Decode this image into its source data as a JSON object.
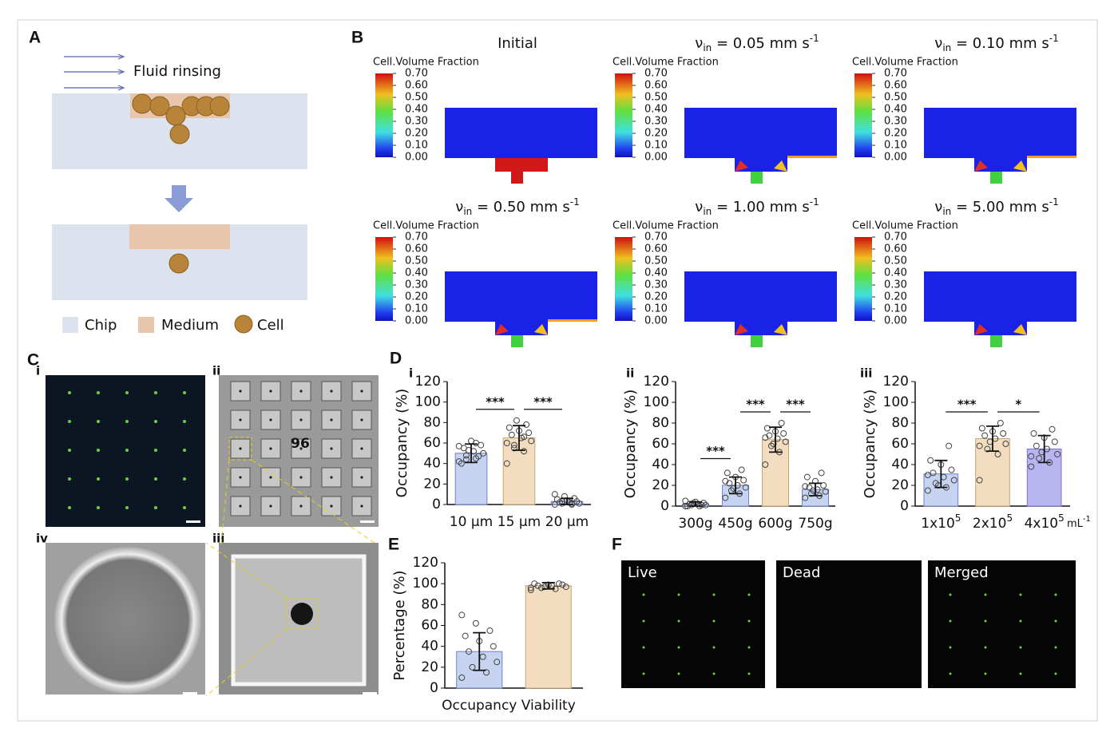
{
  "panel_a": {
    "label": "A",
    "flow_text": "Fluid rinsing",
    "legend": [
      "Chip",
      "Medium",
      "Cell"
    ]
  },
  "panel_b": {
    "label": "B",
    "colorbar": {
      "title": "Cell.Volume Fraction",
      "ticks": [
        {
          "value": 0.7,
          "label": "0.70"
        },
        {
          "value": 0.6,
          "label": "0.60"
        },
        {
          "value": 0.5,
          "label": "0.50"
        },
        {
          "value": 0.4,
          "label": "0.40"
        },
        {
          "value": 0.3,
          "label": "0.30"
        },
        {
          "value": 0.2,
          "label": "0.20"
        },
        {
          "value": 0.1,
          "label": "0.10"
        },
        {
          "value": 0,
          "label": "0.00"
        }
      ]
    },
    "subplots": [
      {
        "title": "Initial"
      },
      {
        "symbol": "ν",
        "sub": "in",
        "title": " = 0.05 mm s",
        "sup": "-1"
      },
      {
        "symbol": "ν",
        "sub": "in",
        "title": " = 0.10 mm s",
        "sup": "-1"
      },
      {
        "symbol": "ν",
        "sub": "in",
        "title": " = 0.50 mm s",
        "sup": "-1"
      },
      {
        "symbol": "ν",
        "sub": "in",
        "title": " = 1.00 mm s",
        "sup": "-1"
      },
      {
        "symbol": "ν",
        "sub": "in",
        "title": " = 5.00 mm s",
        "sup": "-1"
      }
    ]
  },
  "panel_c": {
    "label": "C",
    "images": [
      "i",
      "ii",
      "iii",
      "iv"
    ],
    "chip_number": "96"
  },
  "panel_d": {
    "label": "D",
    "subpanels": [
      "i",
      "ii",
      "iii"
    ]
  },
  "panel_e": {
    "label": "E"
  },
  "panel_f": {
    "label": "F",
    "images": [
      "Live",
      "Dead",
      "Merged"
    ]
  },
  "chart_data": [
    {
      "type": "bar",
      "ylabel": "Occupancy (%)",
      "categories": [
        "10 μm",
        "15 μm",
        "20 μm"
      ],
      "values": [
        50,
        65,
        3
      ],
      "errors": [
        9,
        12,
        3
      ],
      "colors": [
        "#c6d4f1",
        "#f2ddc1",
        "#c6d4f1"
      ],
      "edge_colors": [
        "#6f83c9",
        "#c9a46e",
        "#6f83c9"
      ],
      "points": [
        [
          42,
          45,
          48,
          50,
          52,
          55,
          58,
          62,
          40,
          47,
          53,
          57,
          60,
          44
        ],
        [
          40,
          52,
          58,
          62,
          65,
          68,
          70,
          72,
          75,
          78,
          82,
          60,
          66,
          55
        ],
        [
          0,
          0,
          1,
          1,
          2,
          2,
          3,
          4,
          5,
          6,
          8,
          10,
          1,
          3
        ]
      ],
      "significance": [
        {
          "pair": [
            0,
            1
          ],
          "label": "***"
        },
        {
          "pair": [
            1,
            2
          ],
          "label": "***"
        }
      ],
      "ylim": [
        0,
        120
      ],
      "yticks": [
        0,
        20,
        40,
        60,
        80,
        100,
        120
      ]
    },
    {
      "type": "bar",
      "ylabel": "Occupancy (%)",
      "categories": [
        "300g",
        "450g",
        "600g",
        "750g"
      ],
      "values": [
        2,
        20,
        64,
        16
      ],
      "errors": [
        2,
        8,
        12,
        6
      ],
      "colors": [
        "#c6d4f1",
        "#c6d4f1",
        "#f2ddc1",
        "#c6d4f1"
      ],
      "edge_colors": [
        "#6f83c9",
        "#6f83c9",
        "#c9a46e",
        "#6f83c9"
      ],
      "points": [
        [
          0,
          0,
          1,
          1,
          2,
          2,
          3,
          4,
          0,
          1,
          3,
          5
        ],
        [
          8,
          12,
          15,
          18,
          20,
          22,
          25,
          28,
          32,
          35,
          17,
          24
        ],
        [
          40,
          52,
          58,
          62,
          65,
          68,
          70,
          72,
          75,
          80,
          60,
          66
        ],
        [
          8,
          10,
          12,
          14,
          16,
          18,
          20,
          24,
          28,
          32,
          15,
          19
        ]
      ],
      "significance": [
        {
          "pair": [
            0,
            1
          ],
          "label": "***"
        },
        {
          "pair": [
            1,
            2
          ],
          "label": "***"
        },
        {
          "pair": [
            2,
            3
          ],
          "label": "***"
        }
      ],
      "ylim": [
        0,
        120
      ],
      "yticks": [
        0,
        20,
        40,
        60,
        80,
        100,
        120
      ]
    },
    {
      "type": "bar",
      "ylabel": "Occupancy (%)",
      "categories": [
        "1x10",
        "2x10",
        "4x10"
      ],
      "category_superscripts": [
        "5",
        "5",
        "5"
      ],
      "unit": "mL",
      "unit_superscript": "-1",
      "values": [
        31,
        65,
        55
      ],
      "errors": [
        13,
        12,
        13
      ],
      "colors": [
        "#c6d4f1",
        "#f2ddc1",
        "#b9b5f1"
      ],
      "edge_colors": [
        "#6f83c9",
        "#c9a46e",
        "#7a74d8"
      ],
      "points": [
        [
          15,
          18,
          22,
          25,
          28,
          32,
          35,
          40,
          44,
          58,
          20,
          30
        ],
        [
          25,
          50,
          55,
          60,
          65,
          68,
          70,
          72,
          75,
          80,
          62,
          58
        ],
        [
          38,
          42,
          46,
          50,
          55,
          58,
          62,
          66,
          70,
          74,
          52,
          48
        ]
      ],
      "significance": [
        {
          "pair": [
            0,
            1
          ],
          "label": "***"
        },
        {
          "pair": [
            1,
            2
          ],
          "label": "*"
        }
      ],
      "ylim": [
        0,
        120
      ],
      "yticks": [
        0,
        20,
        40,
        60,
        80,
        100,
        120
      ]
    },
    {
      "type": "bar",
      "ylabel": "Percentage (%)",
      "categories": [
        "Occupancy",
        "Viability"
      ],
      "values": [
        35,
        98
      ],
      "errors": [
        18,
        3
      ],
      "colors": [
        "#c6d4f1",
        "#f2ddc1"
      ],
      "edge_colors": [
        "#6f83c9",
        "#c9a46e"
      ],
      "points": [
        [
          10,
          15,
          20,
          25,
          30,
          35,
          40,
          45,
          50,
          55,
          62,
          70
        ],
        [
          94,
          95,
          96,
          97,
          98,
          98,
          99,
          99,
          100,
          100,
          97,
          96
        ]
      ],
      "significance": [],
      "ylim": [
        0,
        120
      ],
      "yticks": [
        0,
        20,
        40,
        60,
        80,
        100,
        120
      ]
    }
  ]
}
